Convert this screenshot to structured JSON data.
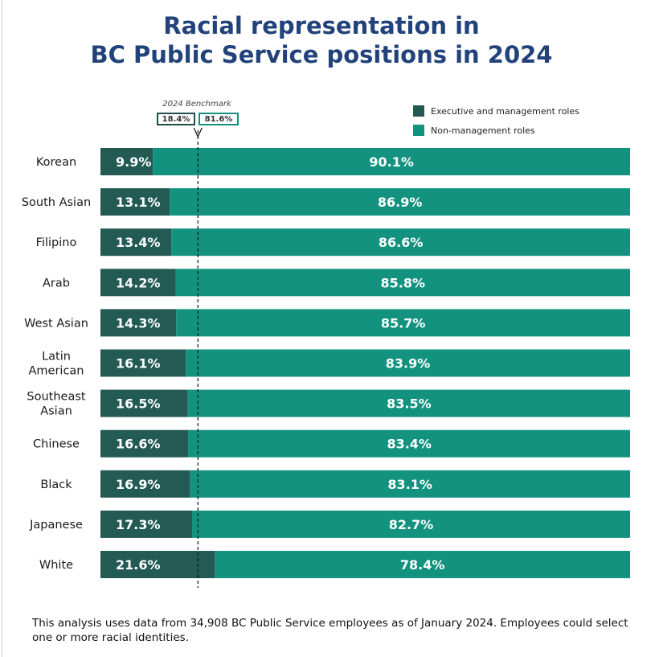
{
  "title_lines": [
    "Racial representation in",
    "BC Public Service positions in 2024"
  ],
  "legend": [
    {
      "label": "Executive and management roles",
      "color": "#235a54"
    },
    {
      "label": "Non-management roles",
      "color": "#13937f"
    }
  ],
  "benchmark": {
    "title": "2024 Benchmark",
    "exec_label": "18.4%",
    "non_label": "81.6%",
    "value": 18.4
  },
  "footnote": "This analysis uses data from 34,908 BC Public Service employees as of January 2024. Employees could select one or more racial identities.",
  "chart_data": {
    "type": "bar",
    "orientation": "horizontal",
    "stacked": true,
    "xlim": [
      0,
      100
    ],
    "categories": [
      [
        "Korean"
      ],
      [
        "South Asian"
      ],
      [
        "Filipino"
      ],
      [
        "Arab"
      ],
      [
        "West Asian"
      ],
      [
        "Latin",
        "American"
      ],
      [
        "Southeast",
        "Asian"
      ],
      [
        "Chinese"
      ],
      [
        "Black"
      ],
      [
        "Japanese"
      ],
      [
        "White"
      ]
    ],
    "series": [
      {
        "name": "Executive and management roles",
        "color": "#235a54",
        "values": [
          9.9,
          13.1,
          13.4,
          14.2,
          14.3,
          16.1,
          16.5,
          16.6,
          16.9,
          17.3,
          21.6
        ],
        "labels": [
          "9.9%",
          "13.1%",
          "13.4%",
          "14.2%",
          "14.3%",
          "16.1%",
          "16.5%",
          "16.6%",
          "16.9%",
          "17.3%",
          "21.6%"
        ]
      },
      {
        "name": "Non-management roles",
        "color": "#13937f",
        "values": [
          90.1,
          86.9,
          86.6,
          85.8,
          85.7,
          83.9,
          83.5,
          83.4,
          83.1,
          82.7,
          78.4
        ],
        "labels": [
          "90.1%",
          "86.9%",
          "86.6%",
          "85.8%",
          "85.7%",
          "83.9%",
          "83.5%",
          "83.4%",
          "83.1%",
          "82.7%",
          "78.4%"
        ]
      }
    ],
    "reference_line": {
      "name": "2024 Benchmark",
      "value": 18.4
    }
  }
}
